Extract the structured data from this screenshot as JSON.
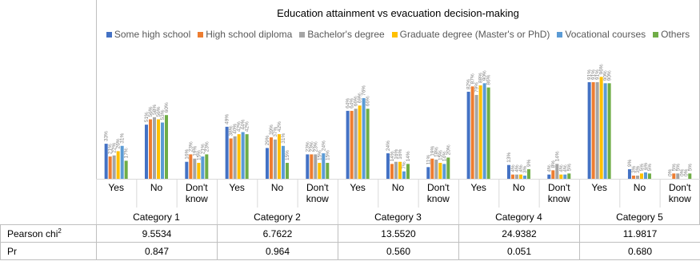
{
  "chart_data": {
    "type": "bar",
    "title": "Education attainment vs evacuation decision-making",
    "legend_position": "top",
    "series": [
      {
        "name": "Some high school",
        "color": "#4472c4",
        "values": [
          33,
          51,
          16,
          49,
          29,
          23,
          64,
          24,
          11,
          82,
          13,
          4,
          91,
          9,
          0
        ]
      },
      {
        "name": "High school diploma",
        "color": "#ed7d31",
        "values": [
          21,
          56,
          23,
          38,
          39,
          23,
          64,
          14,
          19,
          87,
          4,
          8,
          91,
          3,
          5
        ]
      },
      {
        "name": "Bachelor's degree",
        "color": "#a5a5a5",
        "values": [
          22,
          58,
          19,
          40,
          37,
          23,
          66,
          16,
          18,
          79,
          4,
          14,
          91,
          3,
          5
        ]
      },
      {
        "name": "Graduate degree (Master's or PhD)",
        "color": "#ffc000",
        "values": [
          26,
          56,
          15,
          42,
          42,
          15,
          69,
          16,
          15,
          88,
          4,
          4,
          96,
          5,
          0
        ]
      },
      {
        "name": "Vocational courses",
        "color": "#5b9bd5",
        "values": [
          31,
          53,
          21,
          44,
          31,
          24,
          76,
          7,
          14,
          90,
          3,
          4,
          90,
          6,
          0
        ]
      },
      {
        "name": "Others",
        "color": "#70ad47",
        "values": [
          17,
          60,
          23,
          42,
          15,
          15,
          66,
          14,
          20,
          86,
          9,
          5,
          90,
          5,
          5
        ]
      }
    ],
    "groups": [
      {
        "category": "Category 1",
        "labels": [
          "Yes",
          "No",
          "Don't\nknow"
        ]
      },
      {
        "category": "Category 2",
        "labels": [
          "Yes",
          "No",
          "Don't\nknow"
        ]
      },
      {
        "category": "Category 3",
        "labels": [
          "Yes",
          "No",
          "Don't\nknow"
        ]
      },
      {
        "category": "Category 4",
        "labels": [
          "Yes",
          "No",
          "Don't\nknow"
        ]
      },
      {
        "category": "Category 5",
        "labels": [
          "Yes",
          "No",
          "Don't\nknow"
        ]
      }
    ],
    "ylim": [
      0,
      100
    ],
    "grid": false,
    "value_suffix": "%"
  },
  "table": {
    "rows": [
      {
        "label": "Pearson chi",
        "sup": "2",
        "values": [
          "9.5534",
          "6.7622",
          "13.5520",
          "24.9382",
          "11.9817"
        ]
      },
      {
        "label": "Pr",
        "sup": "",
        "values": [
          "0.847",
          "0.964",
          "0.560",
          "0.051",
          "0.680"
        ]
      }
    ]
  }
}
